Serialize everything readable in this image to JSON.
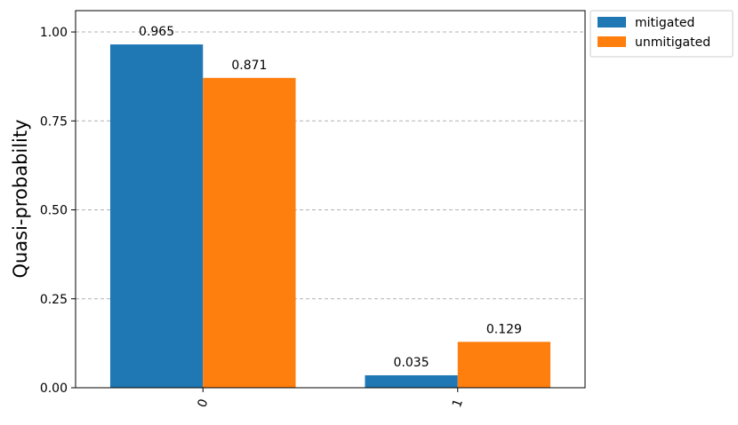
{
  "chart_data": {
    "type": "bar",
    "categories": [
      "0",
      "1"
    ],
    "series": [
      {
        "name": "mitigated",
        "values": [
          0.965,
          0.035
        ],
        "labels": [
          "0.965",
          "0.035"
        ],
        "color": "#1f77b4"
      },
      {
        "name": "unmitigated",
        "values": [
          0.871,
          0.129
        ],
        "labels": [
          "0.871",
          "0.129"
        ],
        "color": "#ff7f0e"
      }
    ],
    "ylabel": "Quasi-probability",
    "xlabel": "",
    "ylim": [
      0,
      1.06
    ],
    "yticks": [
      0.0,
      0.25,
      0.5,
      0.75,
      1.0
    ],
    "ytick_labels": [
      "0.00",
      "0.25",
      "0.50",
      "0.75",
      "1.00"
    ],
    "grid": "horizontal dashed",
    "legend_position": "outside top-right"
  }
}
